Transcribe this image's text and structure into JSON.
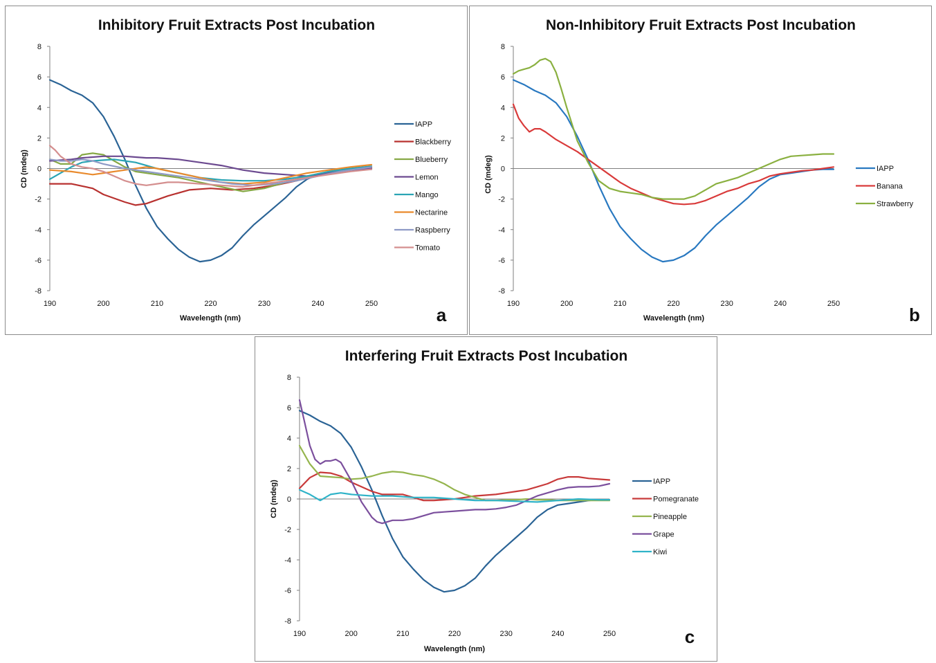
{
  "chart_data": [
    {
      "id": "a",
      "type": "line",
      "title": "Inhibitory Fruit Extracts Post Incubation",
      "xlabel": "Wavelength (nm)",
      "ylabel": "CD (mdeg)",
      "panel_label": "a",
      "xlim": [
        190,
        250
      ],
      "ylim": [
        -8,
        8
      ],
      "xticks": [
        190,
        200,
        210,
        220,
        230,
        240,
        250
      ],
      "yticks": [
        -8,
        -6,
        -4,
        -2,
        0,
        2,
        4,
        6,
        8
      ],
      "grid": false,
      "legend_position": "right",
      "series": [
        {
          "name": "IAPP",
          "color": "#2a6395",
          "x": [
            190,
            192,
            194,
            196,
            198,
            200,
            202,
            204,
            206,
            208,
            210,
            212,
            214,
            216,
            218,
            220,
            222,
            224,
            226,
            228,
            230,
            232,
            234,
            236,
            238,
            240,
            242,
            244,
            246,
            248,
            250
          ],
          "y": [
            5.8,
            5.5,
            5.1,
            4.8,
            4.3,
            3.4,
            2.1,
            0.6,
            -1.1,
            -2.6,
            -3.8,
            -4.6,
            -5.3,
            -5.8,
            -6.1,
            -6.0,
            -5.7,
            -5.2,
            -4.4,
            -3.7,
            -3.1,
            -2.5,
            -1.9,
            -1.2,
            -0.7,
            -0.4,
            -0.3,
            -0.2,
            -0.1,
            -0.05,
            -0.05
          ]
        },
        {
          "name": "Blackberry",
          "color": "#b8312f",
          "x": [
            190,
            194,
            198,
            200,
            204,
            206,
            208,
            212,
            216,
            220,
            224,
            228,
            232,
            236,
            240,
            244,
            248,
            250
          ],
          "y": [
            -1.0,
            -1.0,
            -1.3,
            -1.7,
            -2.2,
            -2.4,
            -2.3,
            -1.8,
            -1.4,
            -1.3,
            -1.4,
            -1.3,
            -1.1,
            -0.8,
            -0.4,
            -0.2,
            0.0,
            0.05
          ]
        },
        {
          "name": "Blueberry",
          "color": "#86a845",
          "x": [
            190,
            192,
            194,
            196,
            198,
            200,
            202,
            204,
            206,
            210,
            214,
            218,
            222,
            226,
            230,
            234,
            238,
            242,
            246,
            250
          ],
          "y": [
            0.6,
            0.3,
            0.3,
            0.9,
            1.0,
            0.9,
            0.5,
            0.1,
            -0.2,
            -0.4,
            -0.6,
            -0.9,
            -1.2,
            -1.5,
            -1.3,
            -0.9,
            -0.5,
            -0.2,
            0.0,
            0.1
          ]
        },
        {
          "name": "Lemon",
          "color": "#6c4a90",
          "x": [
            190,
            192,
            194,
            196,
            198,
            200,
            202,
            204,
            206,
            208,
            210,
            214,
            218,
            222,
            226,
            230,
            234,
            238,
            242,
            246,
            250
          ],
          "y": [
            0.5,
            0.55,
            0.6,
            0.7,
            0.75,
            0.8,
            0.8,
            0.8,
            0.75,
            0.7,
            0.7,
            0.6,
            0.4,
            0.2,
            -0.1,
            -0.3,
            -0.4,
            -0.5,
            -0.3,
            -0.1,
            0.0
          ]
        },
        {
          "name": "Mango",
          "color": "#2aa4b4",
          "x": [
            190,
            192,
            194,
            196,
            198,
            200,
            202,
            204,
            206,
            208,
            210,
            214,
            218,
            222,
            226,
            230,
            234,
            238,
            242,
            246,
            250
          ],
          "y": [
            -0.7,
            -0.3,
            0.1,
            0.4,
            0.5,
            0.55,
            0.6,
            0.5,
            0.4,
            0.2,
            0.0,
            -0.3,
            -0.6,
            -0.75,
            -0.8,
            -0.8,
            -0.7,
            -0.5,
            -0.2,
            0.0,
            0.15
          ]
        },
        {
          "name": "Nectarine",
          "color": "#e98a2c",
          "x": [
            190,
            194,
            198,
            200,
            204,
            208,
            210,
            214,
            218,
            222,
            226,
            230,
            234,
            238,
            242,
            246,
            250
          ],
          "y": [
            -0.1,
            -0.2,
            -0.4,
            -0.3,
            -0.1,
            0.1,
            0.0,
            -0.3,
            -0.6,
            -0.9,
            -1.0,
            -0.9,
            -0.6,
            -0.3,
            -0.1,
            0.1,
            0.25
          ]
        },
        {
          "name": "Raspberry",
          "color": "#8e9ac6",
          "x": [
            190,
            192,
            194,
            196,
            198,
            200,
            204,
            208,
            212,
            216,
            220,
            224,
            228,
            232,
            236,
            240,
            244,
            248,
            250
          ],
          "y": [
            0.6,
            0.5,
            0.5,
            0.6,
            0.5,
            0.3,
            0.0,
            -0.2,
            -0.4,
            -0.6,
            -0.8,
            -1.0,
            -1.1,
            -1.0,
            -0.8,
            -0.5,
            -0.2,
            0.0,
            0.1
          ]
        },
        {
          "name": "Tomato",
          "color": "#d48e8e",
          "x": [
            190,
            191,
            192,
            194,
            196,
            198,
            200,
            202,
            204,
            206,
            208,
            210,
            212,
            214,
            218,
            222,
            226,
            230,
            234,
            238,
            242,
            246,
            250
          ],
          "y": [
            1.5,
            1.2,
            0.8,
            0.3,
            0.1,
            0.0,
            -0.2,
            -0.5,
            -0.8,
            -1.0,
            -1.1,
            -1.0,
            -0.9,
            -0.9,
            -1.0,
            -1.1,
            -1.2,
            -1.0,
            -0.8,
            -0.6,
            -0.4,
            -0.2,
            -0.05
          ]
        }
      ]
    },
    {
      "id": "b",
      "type": "line",
      "title": "Non-Inhibitory Fruit Extracts Post Incubation",
      "xlabel": "Wavelength (nm)",
      "ylabel": "CD (mdeg)",
      "panel_label": "b",
      "xlim": [
        190,
        250
      ],
      "ylim": [
        -8,
        8
      ],
      "xticks": [
        190,
        200,
        210,
        220,
        230,
        240,
        250
      ],
      "yticks": [
        -8,
        -6,
        -4,
        -2,
        0,
        2,
        4,
        6,
        8
      ],
      "grid": false,
      "legend_position": "right",
      "series": [
        {
          "name": "IAPP",
          "color": "#2878c0",
          "x": [
            190,
            192,
            194,
            196,
            198,
            200,
            202,
            204,
            206,
            208,
            210,
            212,
            214,
            216,
            218,
            220,
            222,
            224,
            226,
            228,
            230,
            232,
            234,
            236,
            238,
            240,
            242,
            244,
            246,
            248,
            250
          ],
          "y": [
            5.8,
            5.5,
            5.1,
            4.8,
            4.3,
            3.4,
            2.1,
            0.6,
            -1.1,
            -2.6,
            -3.8,
            -4.6,
            -5.3,
            -5.8,
            -6.1,
            -6.0,
            -5.7,
            -5.2,
            -4.4,
            -3.7,
            -3.1,
            -2.5,
            -1.9,
            -1.2,
            -0.7,
            -0.4,
            -0.3,
            -0.2,
            -0.1,
            -0.05,
            -0.05
          ]
        },
        {
          "name": "Banana",
          "color": "#d93a3a",
          "x": [
            190,
            191,
            192,
            193,
            194,
            195,
            196,
            198,
            200,
            202,
            204,
            206,
            208,
            210,
            212,
            214,
            216,
            218,
            220,
            222,
            224,
            226,
            228,
            230,
            232,
            234,
            236,
            238,
            240,
            242,
            244,
            246,
            248,
            250
          ],
          "y": [
            4.2,
            3.3,
            2.8,
            2.4,
            2.6,
            2.6,
            2.4,
            1.9,
            1.5,
            1.1,
            0.6,
            0.1,
            -0.4,
            -0.9,
            -1.3,
            -1.6,
            -1.9,
            -2.1,
            -2.3,
            -2.35,
            -2.3,
            -2.1,
            -1.8,
            -1.5,
            -1.3,
            -1.0,
            -0.8,
            -0.5,
            -0.35,
            -0.25,
            -0.15,
            -0.1,
            0.0,
            0.1
          ]
        },
        {
          "name": "Strawberry",
          "color": "#8ab040",
          "x": [
            190,
            191,
            192,
            193,
            194,
            195,
            196,
            197,
            198,
            199,
            200,
            201,
            202,
            204,
            206,
            208,
            210,
            212,
            214,
            216,
            218,
            220,
            222,
            224,
            226,
            228,
            230,
            232,
            234,
            236,
            238,
            240,
            242,
            244,
            246,
            248,
            250
          ],
          "y": [
            6.2,
            6.4,
            6.5,
            6.6,
            6.8,
            7.1,
            7.2,
            7.0,
            6.3,
            5.2,
            4.0,
            2.9,
            1.8,
            0.4,
            -0.8,
            -1.3,
            -1.5,
            -1.6,
            -1.7,
            -1.9,
            -2.0,
            -2.0,
            -2.0,
            -1.8,
            -1.4,
            -1.0,
            -0.8,
            -0.6,
            -0.3,
            0.0,
            0.3,
            0.6,
            0.8,
            0.85,
            0.9,
            0.95,
            0.95
          ]
        }
      ]
    },
    {
      "id": "c",
      "type": "line",
      "title": "Interfering Fruit Extracts Post Incubation",
      "xlabel": "Wavelength (nm)",
      "ylabel": "CD (mdeg)",
      "panel_label": "c",
      "xlim": [
        190,
        250
      ],
      "ylim": [
        -8,
        8
      ],
      "xticks": [
        190,
        200,
        210,
        220,
        230,
        240,
        250
      ],
      "yticks": [
        -8,
        -6,
        -4,
        -2,
        0,
        2,
        4,
        6,
        8
      ],
      "grid": false,
      "legend_position": "right",
      "series": [
        {
          "name": "IAPP",
          "color": "#2a6395",
          "x": [
            190,
            192,
            194,
            196,
            198,
            200,
            202,
            204,
            206,
            208,
            210,
            212,
            214,
            216,
            218,
            220,
            222,
            224,
            226,
            228,
            230,
            232,
            234,
            236,
            238,
            240,
            242,
            244,
            246,
            248,
            250
          ],
          "y": [
            5.8,
            5.5,
            5.1,
            4.8,
            4.3,
            3.4,
            2.1,
            0.6,
            -1.1,
            -2.6,
            -3.8,
            -4.6,
            -5.3,
            -5.8,
            -6.1,
            -6.0,
            -5.7,
            -5.2,
            -4.4,
            -3.7,
            -3.1,
            -2.5,
            -1.9,
            -1.2,
            -0.7,
            -0.4,
            -0.3,
            -0.2,
            -0.1,
            -0.05,
            -0.05
          ]
        },
        {
          "name": "Pomegranate",
          "color": "#c83a3a",
          "x": [
            190,
            192,
            194,
            196,
            198,
            200,
            202,
            204,
            206,
            208,
            210,
            212,
            214,
            216,
            218,
            220,
            222,
            224,
            226,
            228,
            230,
            232,
            234,
            236,
            238,
            240,
            242,
            244,
            246,
            248,
            250
          ],
          "y": [
            0.7,
            1.4,
            1.75,
            1.7,
            1.5,
            1.1,
            0.8,
            0.5,
            0.3,
            0.3,
            0.3,
            0.1,
            -0.1,
            -0.1,
            -0.05,
            0.0,
            0.1,
            0.2,
            0.25,
            0.3,
            0.4,
            0.5,
            0.6,
            0.8,
            1.0,
            1.3,
            1.45,
            1.45,
            1.35,
            1.3,
            1.25
          ]
        },
        {
          "name": "Pineapple",
          "color": "#95b54e",
          "x": [
            190,
            192,
            194,
            196,
            198,
            200,
            202,
            204,
            206,
            208,
            210,
            212,
            214,
            216,
            218,
            220,
            222,
            224,
            226,
            228,
            230,
            232,
            234,
            236,
            238,
            240,
            242,
            244,
            246,
            248,
            250
          ],
          "y": [
            3.5,
            2.3,
            1.5,
            1.45,
            1.4,
            1.3,
            1.35,
            1.5,
            1.7,
            1.8,
            1.75,
            1.6,
            1.5,
            1.3,
            1.0,
            0.6,
            0.3,
            0.1,
            -0.1,
            -0.1,
            -0.05,
            -0.05,
            0.0,
            -0.05,
            -0.05,
            -0.1,
            -0.1,
            -0.1,
            -0.1,
            -0.1,
            -0.1
          ]
        },
        {
          "name": "Grape",
          "color": "#7b4f9d",
          "x": [
            190,
            191,
            192,
            193,
            194,
            195,
            196,
            197,
            198,
            200,
            202,
            204,
            205,
            206,
            208,
            210,
            212,
            214,
            216,
            218,
            220,
            222,
            224,
            226,
            228,
            230,
            232,
            234,
            236,
            238,
            240,
            242,
            244,
            246,
            248,
            250
          ],
          "y": [
            6.5,
            5.0,
            3.5,
            2.6,
            2.3,
            2.5,
            2.5,
            2.6,
            2.4,
            1.2,
            -0.2,
            -1.2,
            -1.5,
            -1.6,
            -1.4,
            -1.4,
            -1.3,
            -1.1,
            -0.9,
            -0.85,
            -0.8,
            -0.75,
            -0.7,
            -0.7,
            -0.65,
            -0.55,
            -0.4,
            -0.1,
            0.2,
            0.4,
            0.6,
            0.75,
            0.8,
            0.8,
            0.85,
            1.0
          ]
        },
        {
          "name": "Kiwi",
          "color": "#2fb3c8",
          "x": [
            190,
            192,
            194,
            196,
            198,
            200,
            204,
            208,
            212,
            216,
            220,
            224,
            228,
            232,
            236,
            240,
            244,
            248,
            250
          ],
          "y": [
            0.6,
            0.3,
            -0.1,
            0.3,
            0.4,
            0.3,
            0.2,
            0.2,
            0.1,
            0.1,
            0.0,
            -0.1,
            -0.1,
            -0.15,
            -0.2,
            -0.1,
            0.0,
            -0.05,
            -0.05
          ]
        }
      ]
    }
  ]
}
